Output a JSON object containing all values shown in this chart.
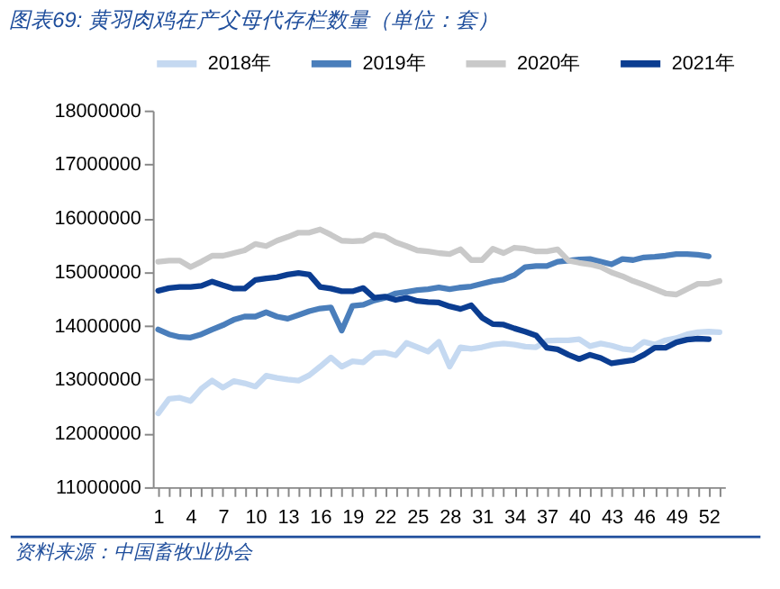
{
  "chart_data": {
    "type": "line",
    "title": "图表69: 黄羽肉鸡在产父母代存栏数量（单位：套）",
    "annotations": [
      "资料来源：中国畜牧业协会"
    ],
    "categories": [
      "1",
      null,
      null,
      "4",
      null,
      null,
      "7",
      null,
      null,
      "10",
      null,
      null,
      "13",
      null,
      null,
      "16",
      null,
      null,
      "19",
      null,
      null,
      "22",
      null,
      null,
      "25",
      null,
      null,
      "28",
      null,
      null,
      "31",
      null,
      null,
      "34",
      null,
      null,
      "37",
      null,
      null,
      "40",
      null,
      null,
      "43",
      null,
      null,
      "46",
      null,
      null,
      "49",
      null,
      null,
      "52",
      null
    ],
    "series": [
      {
        "name": "2018年",
        "color": "#c5d9f1",
        "values": [
          12370000,
          12640000,
          12660000,
          12600000,
          12830000,
          12980000,
          12850000,
          12970000,
          12930000,
          12870000,
          13070000,
          13030000,
          13000000,
          12980000,
          13080000,
          13240000,
          13410000,
          13240000,
          13340000,
          13320000,
          13490000,
          13500000,
          13450000,
          13680000,
          13600000,
          13520000,
          13700000,
          13240000,
          13600000,
          13570000,
          13600000,
          13650000,
          13670000,
          13650000,
          13610000,
          13600000,
          13720000,
          13730000,
          13730000,
          13750000,
          13620000,
          13670000,
          13630000,
          13570000,
          13550000,
          13700000,
          13650000,
          13730000,
          13770000,
          13840000,
          13880000,
          13890000,
          13880000
        ]
      },
      {
        "name": "2019年",
        "color": "#4a7ebb",
        "values": [
          13930000,
          13840000,
          13790000,
          13780000,
          13840000,
          13930000,
          14010000,
          14110000,
          14170000,
          14170000,
          14250000,
          14170000,
          14130000,
          14200000,
          14270000,
          14320000,
          14340000,
          13910000,
          14370000,
          14390000,
          14470000,
          14520000,
          14600000,
          14630000,
          14660000,
          14680000,
          14710000,
          14680000,
          14710000,
          14730000,
          14780000,
          14830000,
          14860000,
          14940000,
          15090000,
          15110000,
          15110000,
          15190000,
          15210000,
          15230000,
          15240000,
          15190000,
          15140000,
          15240000,
          15220000,
          15270000,
          15280000,
          15300000,
          15330000,
          15330000,
          15320000,
          15290000,
          null
        ]
      },
      {
        "name": "2020年",
        "color": "#c9c9c9",
        "values": [
          15190000,
          15210000,
          15210000,
          15090000,
          15190000,
          15300000,
          15300000,
          15350000,
          15400000,
          15520000,
          15480000,
          15580000,
          15650000,
          15730000,
          15730000,
          15790000,
          15690000,
          15580000,
          15570000,
          15580000,
          15690000,
          15660000,
          15550000,
          15480000,
          15400000,
          15380000,
          15350000,
          15330000,
          15420000,
          15220000,
          15220000,
          15430000,
          15350000,
          15450000,
          15430000,
          15380000,
          15380000,
          15420000,
          15210000,
          15170000,
          15140000,
          15090000,
          14990000,
          14920000,
          14830000,
          14760000,
          14680000,
          14600000,
          14580000,
          14680000,
          14780000,
          14780000,
          14830000
        ]
      },
      {
        "name": "2021年",
        "color": "#0b3d91",
        "values": [
          14650000,
          14700000,
          14720000,
          14720000,
          14740000,
          14820000,
          14750000,
          14690000,
          14690000,
          14850000,
          14880000,
          14900000,
          14950000,
          14980000,
          14950000,
          14720000,
          14690000,
          14640000,
          14640000,
          14700000,
          14520000,
          14540000,
          14480000,
          14520000,
          14460000,
          14440000,
          14430000,
          14360000,
          14310000,
          14380000,
          14150000,
          14030000,
          14020000,
          13950000,
          13890000,
          13820000,
          13590000,
          13560000,
          13460000,
          13380000,
          13460000,
          13400000,
          13300000,
          13330000,
          13360000,
          13460000,
          13590000,
          13590000,
          13690000,
          13740000,
          13760000,
          13750000,
          null
        ]
      }
    ],
    "ylim": [
      11000000,
      18000000
    ],
    "yticks": [
      11000000,
      12000000,
      13000000,
      14000000,
      15000000,
      16000000,
      17000000,
      18000000
    ],
    "grid": false,
    "legend": "top"
  }
}
